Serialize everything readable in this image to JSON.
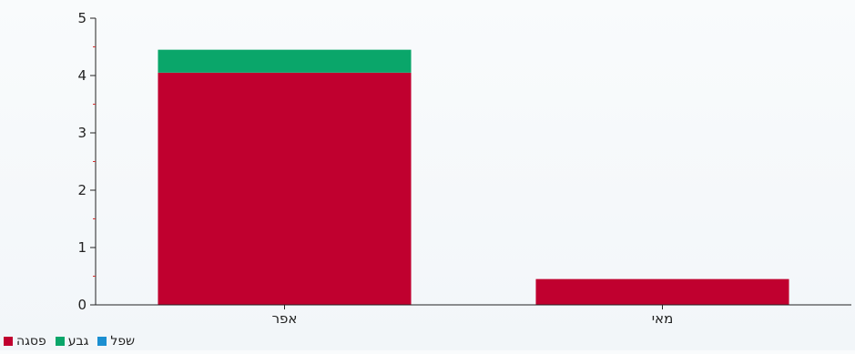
{
  "chart_data": {
    "type": "bar",
    "stacked": true,
    "categories": [
      "אפר",
      "מאי"
    ],
    "series": [
      {
        "name": "פסגה",
        "color": "#c0002f",
        "values": [
          4.05,
          0.45
        ]
      },
      {
        "name": "גבע",
        "color": "#0aa66a",
        "values": [
          0.4,
          0
        ]
      },
      {
        "name": "שפל",
        "color": "#1b8fd1",
        "values": [
          0,
          0
        ]
      }
    ],
    "yticks": [
      "0",
      "1",
      "2",
      "3",
      "4",
      "5"
    ],
    "ylim": [
      0,
      5
    ],
    "title": "",
    "xlabel": "",
    "ylabel": "",
    "grid": false,
    "legend_placement": "bottom-left"
  },
  "legend": {
    "items": [
      {
        "label": "פסגה",
        "color": "#c0002f"
      },
      {
        "label": "גבע",
        "color": "#0aa66a"
      },
      {
        "label": "שפל",
        "color": "#1b8fd1"
      }
    ]
  }
}
